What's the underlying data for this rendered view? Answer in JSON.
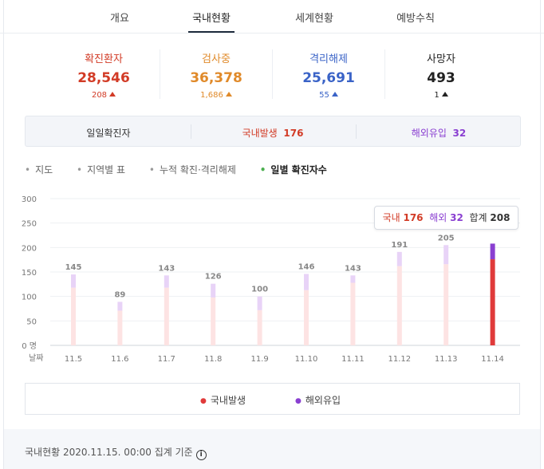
{
  "tabs": [
    {
      "label": "개요"
    },
    {
      "label": "국내현황",
      "active": true
    },
    {
      "label": "세계현황"
    },
    {
      "label": "예방수칙"
    }
  ],
  "stats": [
    {
      "label": "확진환자",
      "value": "28,546",
      "delta": "208",
      "color": "#d23b26",
      "delta_color": "#d23b26"
    },
    {
      "label": "검사중",
      "value": "36,378",
      "delta": "1,686",
      "color": "#e08a2a",
      "delta_color": "#e08a2a"
    },
    {
      "label": "격리해제",
      "value": "25,691",
      "delta": "55",
      "color": "#3a63c7",
      "delta_color": "#3a63c7"
    },
    {
      "label": "사망자",
      "value": "493",
      "delta": "1",
      "color": "#222222",
      "delta_color": "#222222"
    }
  ],
  "summary": {
    "daily_label": "일일확진자",
    "domestic_label": "국내발생",
    "domestic_value": "176",
    "overseas_label": "해외유입",
    "overseas_value": "32"
  },
  "filters": [
    {
      "label": "지도",
      "active": false
    },
    {
      "label": "지역별 표",
      "active": false
    },
    {
      "label": "누적 확진·격리해제",
      "active": false
    },
    {
      "label": "일별 확진자수",
      "active": true
    }
  ],
  "tooltip": {
    "domestic_label": "국내",
    "domestic_value": "176",
    "overseas_label": "해외",
    "overseas_value": "32",
    "total_label": "합계",
    "total_value": "208"
  },
  "legend": [
    {
      "label": "국내발생",
      "color": "#e03a3a"
    },
    {
      "label": "해외유입",
      "color": "#8a3fd1"
    }
  ],
  "footer": {
    "text": "국내현황 2020.11.15. 00:00 집계 기준",
    "icon": "info-icon"
  },
  "colors": {
    "domestic": "#e03a3a",
    "overseas": "#8a3fd1",
    "domestic_faded": "#fde3e3",
    "overseas_faded": "#e8d3f7"
  },
  "chart_data": {
    "type": "bar",
    "stacked": true,
    "xlabel": "날짜",
    "ylabel_unit": "명",
    "ylim": [
      0,
      300
    ],
    "yticks": [
      0,
      50,
      100,
      150,
      200,
      250,
      300
    ],
    "categories": [
      "11.5",
      "11.6",
      "11.7",
      "11.8",
      "11.9",
      "11.10",
      "11.11",
      "11.12",
      "11.13",
      "11.14"
    ],
    "totals": [
      145,
      89,
      143,
      126,
      100,
      146,
      143,
      191,
      205,
      208
    ],
    "series": [
      {
        "name": "국내발생",
        "values": [
          118,
          71,
          118,
          98,
          72,
          113,
          128,
          162,
          166,
          176
        ]
      },
      {
        "name": "해외유입",
        "values": [
          27,
          18,
          25,
          28,
          28,
          33,
          15,
          29,
          39,
          32
        ]
      }
    ],
    "highlight_index": 9,
    "grid": true
  }
}
